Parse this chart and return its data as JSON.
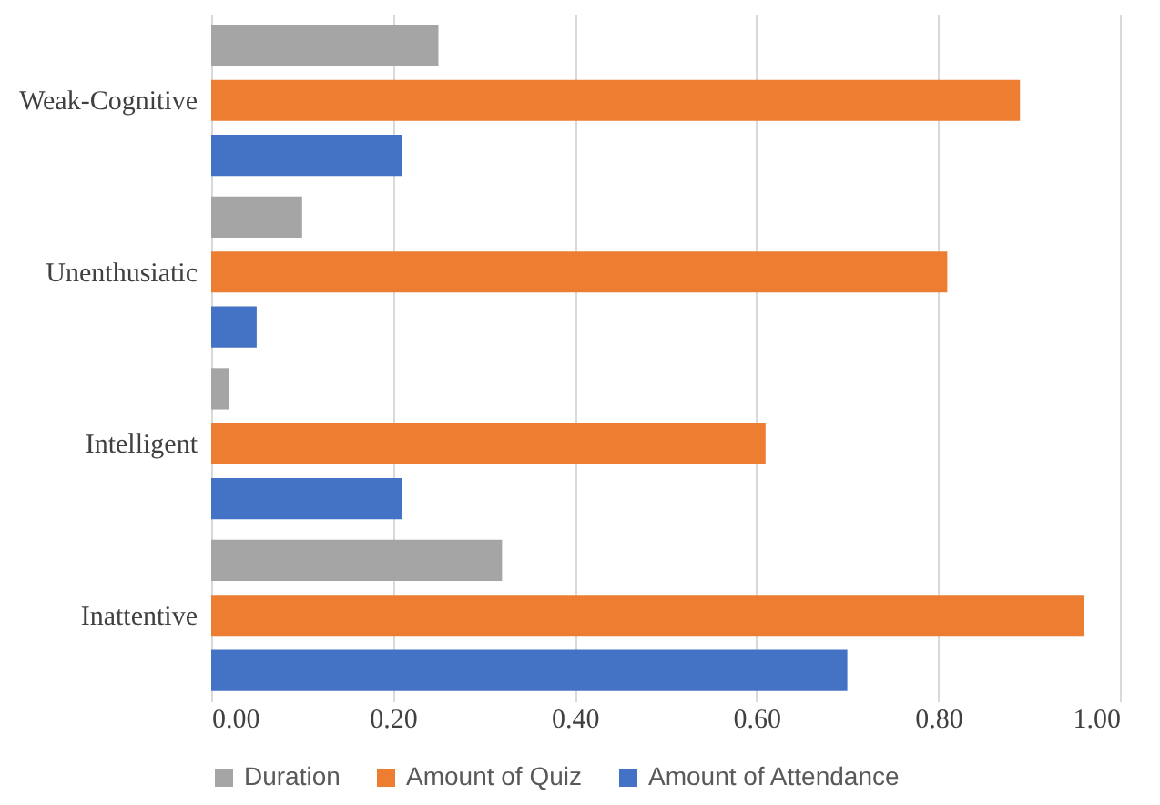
{
  "chart_data": {
    "type": "bar",
    "orientation": "horizontal",
    "categories": [
      "Weak-Cognitive",
      "Unenthusiatic",
      "Intelligent",
      "Inattentive"
    ],
    "series": [
      {
        "name": "Duration",
        "color": "#a5a5a5",
        "values": [
          0.25,
          0.1,
          0.02,
          0.32
        ]
      },
      {
        "name": "Amount of Quiz",
        "color": "#ed7d31",
        "values": [
          0.89,
          0.81,
          0.61,
          0.96
        ]
      },
      {
        "name": "Amount of Attendance",
        "color": "#4472c4",
        "values": [
          0.21,
          0.05,
          0.21,
          0.7
        ]
      }
    ],
    "xlim": [
      0,
      1
    ],
    "xticks": [
      {
        "value": 0,
        "label": "0.00"
      },
      {
        "value": 0.2,
        "label": "0.20"
      },
      {
        "value": 0.4,
        "label": "0.40"
      },
      {
        "value": 0.6,
        "label": "0.60"
      },
      {
        "value": 0.8,
        "label": "0.80"
      },
      {
        "value": 1,
        "label": "1.00"
      }
    ],
    "grid": "x",
    "legend": "bottom"
  }
}
